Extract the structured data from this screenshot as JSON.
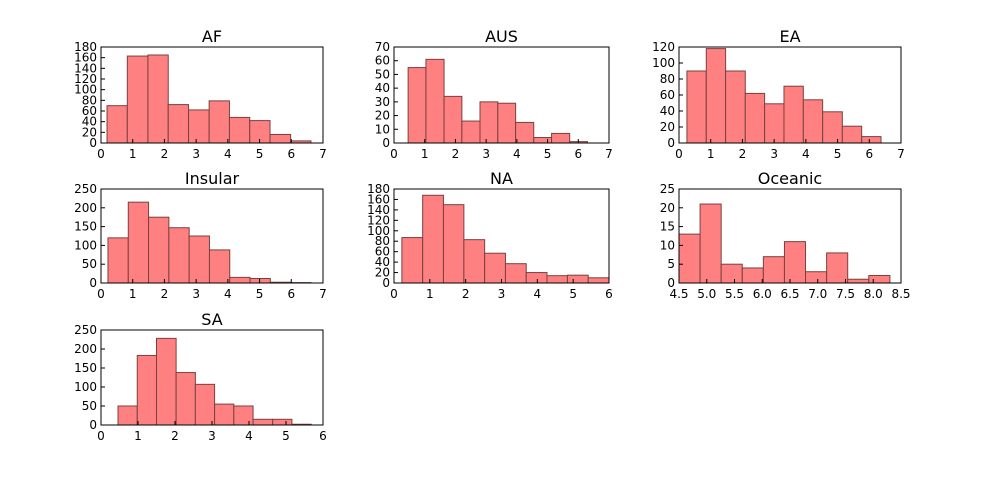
{
  "chart_data": [
    {
      "type": "histogram",
      "title": "AF",
      "color": "#ff8080",
      "bins": [
        0.19,
        0.83,
        1.48,
        2.12,
        2.76,
        3.41,
        4.05,
        4.69,
        5.33,
        5.98,
        6.62
      ],
      "values": [
        70,
        163,
        165,
        72,
        62,
        79,
        48,
        42,
        16,
        4
      ],
      "xlim": [
        0,
        7
      ],
      "xticks": [
        0,
        1,
        2,
        3,
        4,
        5,
        6,
        7
      ],
      "ylim": [
        0,
        180
      ],
      "yticks": [
        0,
        20,
        40,
        60,
        80,
        100,
        120,
        140,
        160,
        180
      ]
    },
    {
      "type": "histogram",
      "title": "AUS",
      "color": "#ff8080",
      "bins": [
        0.46,
        1.04,
        1.63,
        2.21,
        2.8,
        3.38,
        3.96,
        4.55,
        5.13,
        5.72,
        6.3
      ],
      "values": [
        55,
        61,
        34,
        16,
        30,
        29,
        15,
        4,
        7,
        1
      ],
      "xlim": [
        0,
        7
      ],
      "xticks": [
        0,
        1,
        2,
        3,
        4,
        5,
        6,
        7
      ],
      "ylim": [
        0,
        70
      ],
      "yticks": [
        0,
        10,
        20,
        30,
        40,
        50,
        60,
        70
      ]
    },
    {
      "type": "histogram",
      "title": "EA",
      "color": "#ff8080",
      "bins": [
        0.25,
        0.86,
        1.47,
        2.09,
        2.7,
        3.31,
        3.92,
        4.53,
        5.15,
        5.76,
        6.37
      ],
      "values": [
        90,
        118,
        90,
        62,
        49,
        71,
        54,
        39,
        21,
        8
      ],
      "xlim": [
        0,
        7
      ],
      "xticks": [
        0,
        1,
        2,
        3,
        4,
        5,
        6,
        7
      ],
      "ylim": [
        0,
        120
      ],
      "yticks": [
        0,
        20,
        40,
        60,
        80,
        100,
        120
      ]
    },
    {
      "type": "histogram",
      "title": "Insular",
      "color": "#ff8080",
      "bins": [
        0.22,
        0.86,
        1.5,
        2.14,
        2.78,
        3.42,
        4.06,
        4.7,
        5.34,
        5.98,
        6.62
      ],
      "values": [
        120,
        215,
        175,
        147,
        125,
        88,
        15,
        12,
        2,
        1
      ],
      "xlim": [
        0,
        7
      ],
      "xticks": [
        0,
        1,
        2,
        3,
        4,
        5,
        6,
        7
      ],
      "ylim": [
        0,
        250
      ],
      "yticks": [
        0,
        50,
        100,
        150,
        200,
        250
      ]
    },
    {
      "type": "histogram",
      "title": "NA",
      "color": "#ff8080",
      "bins": [
        0.22,
        0.8,
        1.38,
        1.95,
        2.53,
        3.11,
        3.69,
        4.27,
        4.84,
        5.42,
        6.0
      ],
      "values": [
        87,
        168,
        150,
        83,
        57,
        37,
        20,
        14,
        15,
        10
      ],
      "xlim": [
        0,
        6
      ],
      "xticks": [
        0,
        1,
        2,
        3,
        4,
        5,
        6
      ],
      "ylim": [
        0,
        180
      ],
      "yticks": [
        0,
        20,
        40,
        60,
        80,
        100,
        120,
        140,
        160,
        180
      ]
    },
    {
      "type": "histogram",
      "title": "Oceanic",
      "color": "#ff8080",
      "bins": [
        4.5,
        4.88,
        5.26,
        5.64,
        6.02,
        6.4,
        6.78,
        7.16,
        7.54,
        7.92,
        8.3
      ],
      "values": [
        13,
        21,
        5,
        4,
        7,
        11,
        3,
        8,
        1,
        2
      ],
      "xlim": [
        4.5,
        8.5
      ],
      "xticks": [
        4.5,
        {
          "value": 5,
          "label": "5.0"
        },
        5.5,
        {
          "value": 6,
          "label": "6.0"
        },
        6.5,
        {
          "value": 7,
          "label": "7.0"
        },
        7.5,
        {
          "value": 8,
          "label": "8.0"
        },
        8.5
      ],
      "ylim": [
        0,
        25
      ],
      "yticks": [
        0,
        5,
        10,
        15,
        20,
        25
      ]
    },
    {
      "type": "histogram",
      "title": "SA",
      "color": "#ff8080",
      "bins": [
        0.46,
        0.98,
        1.5,
        2.03,
        2.55,
        3.07,
        3.59,
        4.11,
        4.64,
        5.16,
        5.68
      ],
      "values": [
        50,
        183,
        228,
        138,
        107,
        55,
        50,
        15,
        15,
        2
      ],
      "xlim": [
        0,
        6
      ],
      "xticks": [
        0,
        1,
        2,
        3,
        4,
        5,
        6
      ],
      "ylim": [
        0,
        250
      ],
      "yticks": [
        0,
        50,
        100,
        150,
        200,
        250
      ]
    }
  ]
}
